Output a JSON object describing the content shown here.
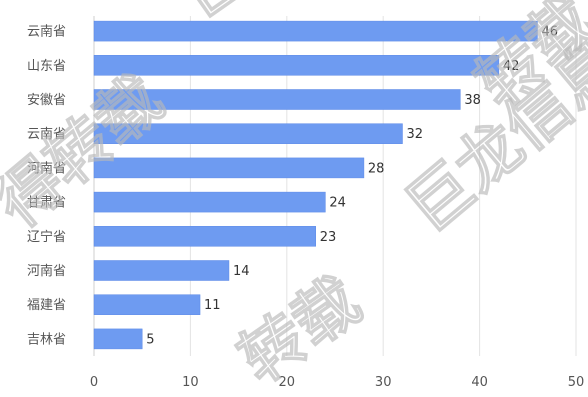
{
  "chart_data": {
    "type": "bar",
    "orientation": "horizontal",
    "categories": [
      "云南省",
      "山东省",
      "安徽省",
      "云南省",
      "河南省",
      "甘肃省",
      "辽宁省",
      "河南省",
      "福建省",
      "吉林省"
    ],
    "values": [
      46,
      42,
      38,
      32,
      28,
      24,
      23,
      14,
      11,
      5
    ],
    "data_labels": [
      "46",
      "42",
      "38",
      "32",
      "28",
      "24",
      "23",
      "14",
      "11",
      "5"
    ],
    "x_ticks": [
      "0",
      "10",
      "20",
      "30",
      "40",
      "50"
    ],
    "xlim": [
      0,
      50
    ],
    "title": "",
    "xlabel": "",
    "ylabel": "",
    "grid": "vertical",
    "legend": "none",
    "colors": {
      "bar": "#6e9bf1",
      "bar_stroke": "#5a88e6",
      "grid": "#e3e3e3",
      "axis": "#cfcfcf",
      "label": "#555555",
      "value_label": "#333333"
    }
  },
  "watermarks": [
    "巨龙信息",
    "巨龙信息",
    "转载",
    "得转载",
    "转载"
  ]
}
